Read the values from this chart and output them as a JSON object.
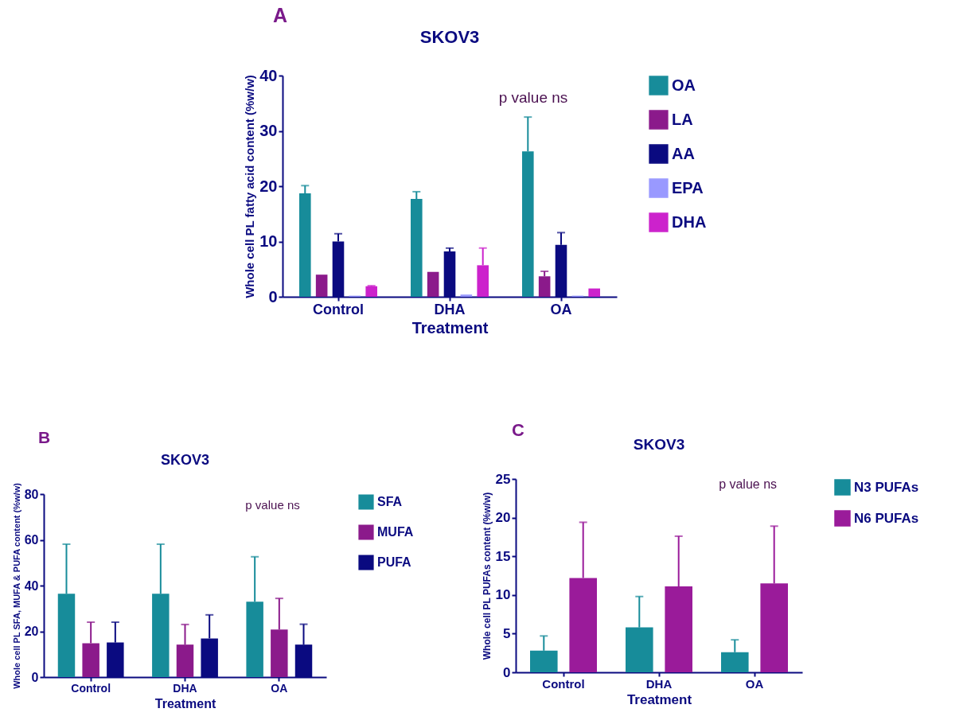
{
  "chart_data": [
    {
      "type": "bar",
      "title": "SKOV3",
      "xlabel": "Treatment",
      "ylabel": "Whole cell PL fatty acid content (%w/w)",
      "annotations": [
        "A",
        "p value ns"
      ],
      "categories": [
        "Control",
        "DHA",
        "OA"
      ],
      "ylim": [
        0,
        40
      ],
      "yticks": [
        0,
        10,
        20,
        30,
        40
      ],
      "grid": false,
      "legend": "right",
      "series": [
        {
          "name": "OA",
          "color": "#178c9a",
          "values": [
            18.7,
            17.7,
            26.3
          ],
          "errors": [
            [
              18.7,
              20.1
            ],
            [
              17.7,
              19.0
            ],
            [
              26.3,
              32.5
            ]
          ]
        },
        {
          "name": "LA",
          "color": "#8b1a8b",
          "values": [
            4.0,
            4.5,
            3.7
          ],
          "errors": [
            null,
            null,
            [
              3.7,
              4.6
            ]
          ]
        },
        {
          "name": "AA",
          "color": "#0a0a80",
          "values": [
            10.0,
            8.2,
            9.4
          ],
          "errors": [
            [
              10.0,
              11.4
            ],
            [
              8.2,
              8.8
            ],
            [
              9.4,
              11.6
            ]
          ]
        },
        {
          "name": "EPA",
          "color": "#9999ff",
          "values": [
            0.2,
            0.4,
            0.2
          ]
        },
        {
          "name": "DHA",
          "color": "#cc22cc",
          "values": [
            1.9,
            5.7,
            1.5
          ],
          "errors": [
            [
              1.9,
              2.0
            ],
            [
              5.7,
              8.8
            ],
            null
          ]
        }
      ]
    },
    {
      "type": "bar",
      "title": "SKOV3",
      "xlabel": "Treatment",
      "ylabel": "Whole cell PL SFA, MUFA & PUFA content (%w/w)",
      "annotations": [
        "B",
        "p value ns"
      ],
      "categories": [
        "Control",
        "DHA",
        "OA"
      ],
      "ylim": [
        0,
        80
      ],
      "yticks": [
        0,
        20,
        40,
        60,
        80
      ],
      "grid": false,
      "legend": "right",
      "series": [
        {
          "name": "SFA",
          "color": "#178c9a",
          "values": [
            36.4,
            36.4,
            33.0
          ],
          "errors": [
            [
              36.4,
              58.1
            ],
            [
              36.4,
              58.1
            ],
            [
              33.0,
              52.6
            ]
          ]
        },
        {
          "name": "MUFA",
          "color": "#8b1a8b",
          "values": [
            14.8,
            14.2,
            20.8
          ],
          "errors": [
            [
              14.8,
              24.0
            ],
            [
              14.2,
              23.0
            ],
            [
              20.8,
              34.4
            ]
          ]
        },
        {
          "name": "PUFA",
          "color": "#0a0a80",
          "values": [
            15.1,
            16.9,
            14.2
          ],
          "errors": [
            [
              15.1,
              24.0
            ],
            [
              16.9,
              27.2
            ],
            [
              14.2,
              23.1
            ]
          ]
        }
      ]
    },
    {
      "type": "bar",
      "title": "SKOV3",
      "xlabel": "Treatment",
      "ylabel": "Whole cell PL PUFAs content (%w/w)",
      "annotations": [
        "C",
        "p value ns"
      ],
      "categories": [
        "Control",
        "DHA",
        "OA"
      ],
      "ylim": [
        0,
        25
      ],
      "yticks": [
        0,
        5,
        10,
        15,
        20,
        25
      ],
      "grid": false,
      "legend": "right",
      "series": [
        {
          "name": "N3 PUFAs",
          "color": "#178c9a",
          "values": [
            2.8,
            5.8,
            2.6
          ],
          "errors": [
            [
              2.8,
              4.7
            ],
            [
              5.8,
              9.8
            ],
            [
              2.6,
              4.2
            ]
          ]
        },
        {
          "name": "N6 PUFAs",
          "color": "#9a1b9a",
          "values": [
            12.2,
            11.1,
            11.5
          ],
          "errors": [
            [
              12.2,
              19.4
            ],
            [
              11.1,
              17.6
            ],
            [
              11.5,
              18.9
            ]
          ]
        }
      ]
    }
  ]
}
